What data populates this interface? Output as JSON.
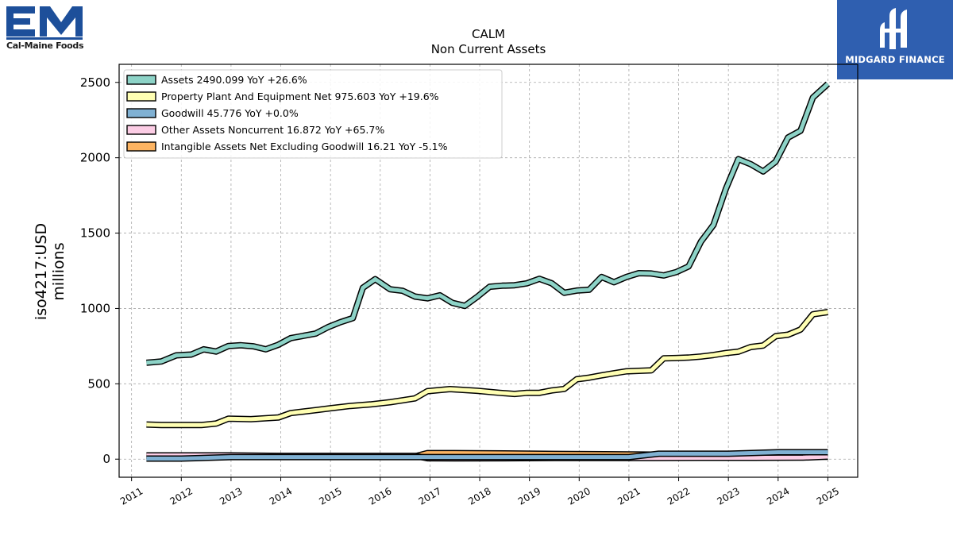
{
  "logos": {
    "left": {
      "text": "Cal-Maine Foods",
      "mark": "EM",
      "color": "#1d4f9a"
    },
    "right": {
      "text": "MIDGARD FINANCE",
      "color": "#2f5fb0"
    }
  },
  "chart_data": {
    "type": "area",
    "title": "CALM",
    "subtitle": "Non Current  Assets",
    "ylabel": [
      "iso4217:USD",
      "millions"
    ],
    "xlabel": "",
    "xlim": [
      2010.75,
      2025.6
    ],
    "ylim": [
      -120,
      2620
    ],
    "yticks": [
      0,
      500,
      1000,
      1500,
      2000,
      2500
    ],
    "xticks": [
      2011,
      2012,
      2013,
      2014,
      2015,
      2016,
      2017,
      2018,
      2019,
      2020,
      2021,
      2022,
      2023,
      2024,
      2025
    ],
    "grid": true,
    "legend_position": "top-left",
    "series": [
      {
        "name": "Intangible Assets Net Excluding Goodwill  16.21 YoY -5.1%",
        "color": "#fdb462",
        "x": [
          2011.3,
          2012.0,
          2013.0,
          2014.0,
          2015.0,
          2016.0,
          2016.7,
          2016.95,
          2017.5,
          2018.5,
          2019.5,
          2020.5,
          2021.5,
          2022.5,
          2023.5,
          2024.5,
          2025.0
        ],
        "y": [
          22,
          22,
          21,
          20,
          20,
          19,
          19,
          40,
          40,
          38,
          35,
          33,
          30,
          27,
          24,
          20,
          16
        ]
      },
      {
        "name": "Other Assets Noncurrent  16.872 YoY +65.7%",
        "color": "#fccde5",
        "x": [
          2011.3,
          2012.0,
          2013.0,
          2014.0,
          2015.0,
          2016.0,
          2016.7,
          2016.95,
          2017.5,
          2018.5,
          2019.5,
          2020.5,
          2021.5,
          2022.5,
          2023.5,
          2024.5,
          2025.0
        ],
        "y": [
          25,
          25,
          25,
          22,
          22,
          22,
          22,
          6,
          5,
          6,
          8,
          8,
          8,
          9,
          9,
          10,
          17
        ]
      },
      {
        "name": "Goodwill  45.776 YoY +0.0%",
        "color": "#80b1d3",
        "x": [
          2011.3,
          2012.0,
          2013.0,
          2014.0,
          2015.0,
          2016.0,
          2016.7,
          2017.0,
          2018.0,
          2019.0,
          2020.0,
          2021.0,
          2021.6,
          2022.0,
          2023.0,
          2024.0,
          2025.0
        ],
        "y": [
          4,
          4,
          14,
          14,
          14,
          14,
          14,
          14,
          14,
          14,
          14,
          14,
          36,
          36,
          36,
          46,
          46
        ]
      },
      {
        "name": "Property Plant And Equipment Net  975.603 YoY +19.6%",
        "color": "#ffffb3",
        "x": [
          2011.3,
          2011.6,
          2012.0,
          2012.4,
          2012.7,
          2012.95,
          2013.4,
          2013.95,
          2014.2,
          2014.7,
          2015.0,
          2015.4,
          2015.8,
          2016.2,
          2016.7,
          2016.95,
          2017.4,
          2017.95,
          2018.4,
          2018.7,
          2018.95,
          2019.2,
          2019.45,
          2019.7,
          2019.95,
          2020.2,
          2020.45,
          2020.7,
          2020.95,
          2021.2,
          2021.45,
          2021.7,
          2021.95,
          2022.2,
          2022.45,
          2022.7,
          2022.95,
          2023.2,
          2023.45,
          2023.7,
          2023.95,
          2024.2,
          2024.45,
          2024.7,
          2025.0
        ],
        "y": [
          230,
          226,
          226,
          226,
          236,
          269,
          265,
          276,
          306,
          325,
          338,
          353,
          363,
          378,
          403,
          451,
          465,
          454,
          440,
          433,
          440,
          440,
          456,
          466,
          530,
          541,
          556,
          570,
          583,
          586,
          589,
          669,
          671,
          674,
          681,
          691,
          704,
          713,
          744,
          754,
          816,
          826,
          860,
          961,
          976
        ]
      },
      {
        "name": "Assets  2490.099 YoY +26.6%",
        "color": "#8dd3c7",
        "x": [
          2011.3,
          2011.6,
          2011.9,
          2012.2,
          2012.45,
          2012.7,
          2012.95,
          2013.2,
          2013.45,
          2013.7,
          2013.95,
          2014.2,
          2014.45,
          2014.7,
          2014.95,
          2015.2,
          2015.45,
          2015.65,
          2015.9,
          2016.2,
          2016.45,
          2016.7,
          2016.95,
          2017.2,
          2017.45,
          2017.7,
          2017.95,
          2018.2,
          2018.45,
          2018.7,
          2018.95,
          2019.2,
          2019.45,
          2019.7,
          2019.95,
          2020.2,
          2020.45,
          2020.7,
          2020.95,
          2021.2,
          2021.45,
          2021.7,
          2021.95,
          2022.2,
          2022.45,
          2022.7,
          2022.95,
          2023.2,
          2023.45,
          2023.7,
          2023.95,
          2024.2,
          2024.45,
          2024.7,
          2025.0
        ],
        "y": [
          640,
          648,
          689,
          694,
          729,
          714,
          751,
          756,
          749,
          729,
          759,
          803,
          818,
          833,
          876,
          909,
          936,
          1137,
          1194,
          1127,
          1117,
          1079,
          1067,
          1087,
          1037,
          1017,
          1077,
          1144,
          1151,
          1154,
          1167,
          1197,
          1167,
          1104,
          1119,
          1124,
          1209,
          1174,
          1209,
          1234,
          1232,
          1219,
          1241,
          1279,
          1444,
          1554,
          1794,
          1991,
          1957,
          1909,
          1974,
          2134,
          2179,
          2400,
          2490
        ]
      }
    ]
  }
}
